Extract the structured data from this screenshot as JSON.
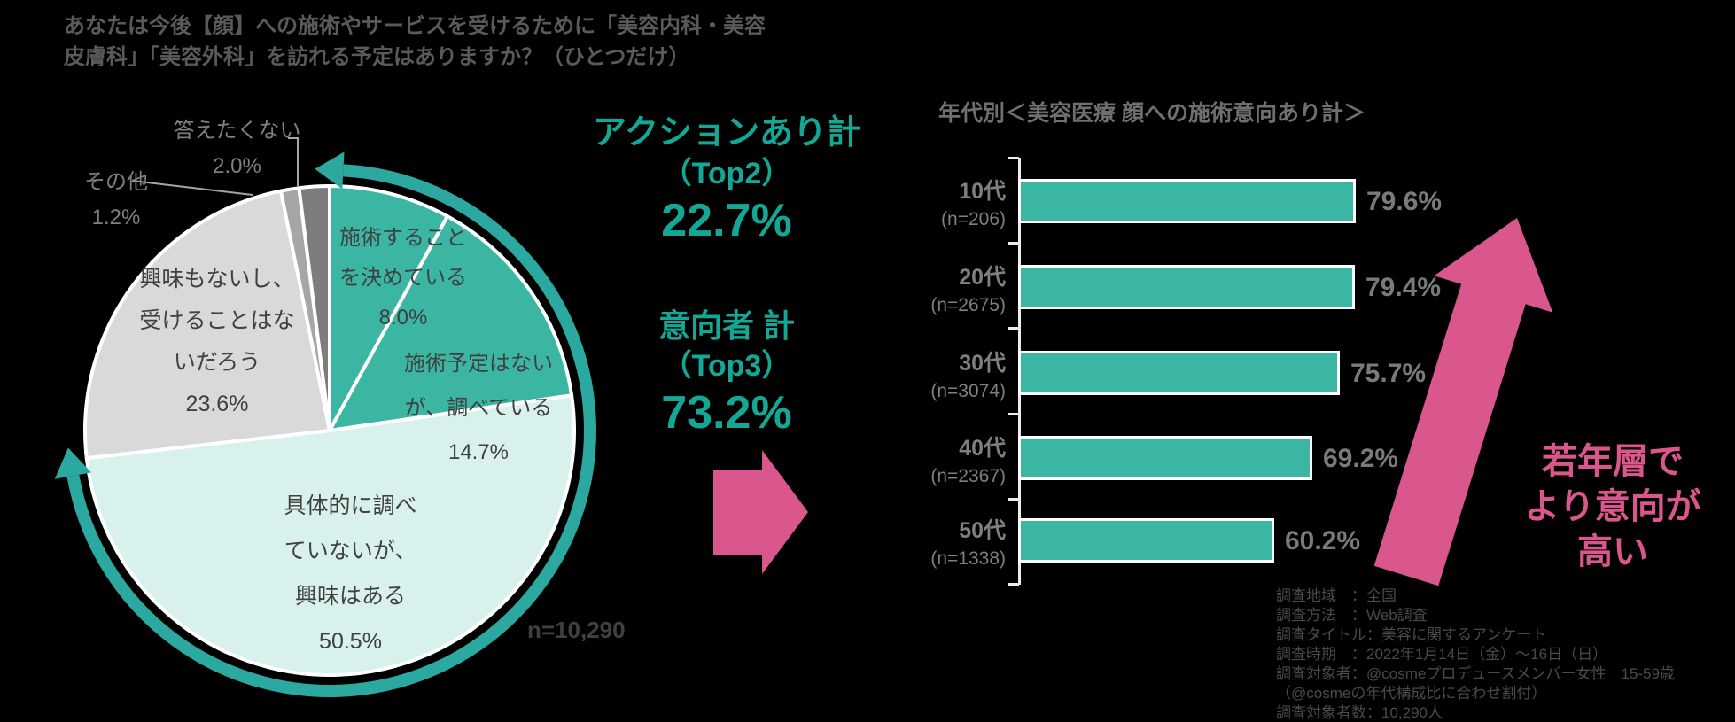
{
  "question_title": {
    "line1": "あなたは今後【顔】への施術やサービスを受けるために「美容内科・美容",
    "line2": "皮膚科」「美容外科」を訪れる予定はありますか？（ひとつだけ）"
  },
  "summary_callouts": {
    "top2": {
      "label": "アクションあり計",
      "sub": "（Top2）",
      "value": "22.7%"
    },
    "top3": {
      "label": "意向者 計",
      "sub": "（Top3）",
      "value": "73.2%"
    }
  },
  "colors": {
    "background": "#000000",
    "teal_text": "#13a796",
    "teal_bar": "#3bb6a3",
    "teal_arc": "#2ba9a0",
    "pink": "#d9578c",
    "mint": "#d8f1ec",
    "light_gray": "#d9d9d9",
    "mid_gray": "#a6a6a6",
    "dark_gray": "#7d7d7d"
  },
  "chart_data": [
    {
      "type": "pie",
      "title": "あなたは今後【顔】への施術やサービスを受けるために「美容内科・美容皮膚科」「美容外科」を訪れる予定はありますか？（ひとつだけ）",
      "n_label": "n=10,290",
      "start_angle_deg": 0,
      "direction": "clockwise",
      "segments": [
        {
          "id": "decided",
          "lines": [
            "施術すること",
            "を決めている"
          ],
          "pct": "8.0%",
          "value": 8.0,
          "color": "#3bb6a3"
        },
        {
          "id": "researching",
          "lines": [
            "施術予定はない",
            "が、調べている"
          ],
          "pct": "14.7%",
          "value": 14.7,
          "color": "#3bb6a3"
        },
        {
          "id": "interested",
          "lines": [
            "具体的に調べ",
            "ていないが、",
            "興味はある"
          ],
          "pct": "50.5%",
          "value": 50.5,
          "color": "#d8f1ec"
        },
        {
          "id": "no-interest",
          "lines": [
            "興味もないし、",
            "受けることはな",
            "いだろう"
          ],
          "pct": "23.6%",
          "value": 23.6,
          "color": "#d9d9d9"
        },
        {
          "id": "other",
          "lines": [
            "その他"
          ],
          "pct": "1.2%",
          "value": 1.2,
          "color": "#a6a6a6"
        },
        {
          "id": "no-answer",
          "lines": [
            "答えたくない"
          ],
          "pct": "2.0%",
          "value": 2.0,
          "color": "#7d7d7d"
        }
      ],
      "highlight_arc": {
        "covers": "top3-segments",
        "span_pct": 73.2
      }
    },
    {
      "type": "bar",
      "orientation": "horizontal",
      "title": "年代別＜美容医療 顔への施術意向あり計＞",
      "categories": [
        "10代",
        "20代",
        "30代",
        "40代",
        "50代"
      ],
      "category_n": [
        "(n=206)",
        "(n=2675)",
        "(n=3074)",
        "(n=2367)",
        "(n=1338)"
      ],
      "values": [
        79.6,
        79.4,
        75.7,
        69.2,
        60.2
      ],
      "value_labels": [
        "79.6%",
        "79.4%",
        "75.7%",
        "69.2%",
        "60.2%"
      ],
      "xlim": [
        0,
        100
      ],
      "grid": false,
      "annotation_lines": [
        "若年層で",
        "より意向が",
        "高い"
      ]
    }
  ],
  "survey_notes": [
    "調査地域　：全国",
    "調査方法　：Web調査",
    "調査タイトル：美容に関するアンケート",
    "調査時期　：2022年1月14日（金）～16日（日）",
    "調査対象者：@cosmeプロデュースメンバー女性　15-59歳",
    "（@cosmeの年代構成比に合わせ割付）",
    "調査対象者数：10,290人"
  ]
}
